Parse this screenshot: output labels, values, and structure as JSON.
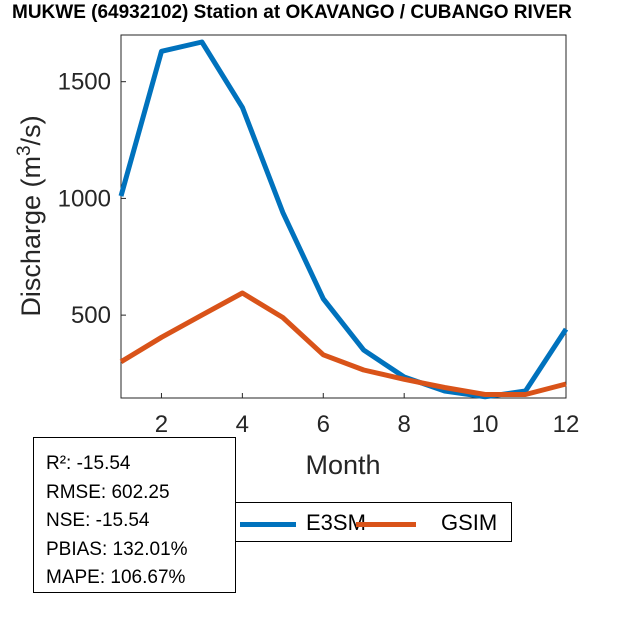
{
  "title": "MUKWE (64932102)  Station at  OKAVANGO / CUBANGO  RIVER",
  "chart_data": {
    "type": "line",
    "xlabel": "Month",
    "ylabel": "Discharge (m³/s)",
    "ylabel_base": "Discharge (m",
    "ylabel_sup": "3",
    "ylabel_tail": "/s)",
    "x": [
      1,
      2,
      3,
      4,
      5,
      6,
      7,
      8,
      9,
      10,
      11,
      12
    ],
    "xlim": [
      1,
      12
    ],
    "ylim": [
      145,
      1700
    ],
    "xticks": [
      2,
      4,
      6,
      8,
      10,
      12
    ],
    "yticks": [
      500,
      1000,
      1500
    ],
    "grid": false,
    "series": [
      {
        "name": "E3SM",
        "color": "#0072BD",
        "values": [
          1010,
          1630,
          1670,
          1390,
          940,
          570,
          350,
          235,
          175,
          150,
          175,
          440
        ]
      },
      {
        "name": "GSIM",
        "color": "#D95319",
        "values": [
          300,
          405,
          500,
          595,
          490,
          330,
          265,
          225,
          190,
          160,
          160,
          205
        ]
      }
    ]
  },
  "stats": {
    "r2": "R²: -15.54",
    "rmse": "RMSE: 602.25",
    "nse": "NSE: -15.54",
    "pbias": "PBIAS: 132.01%",
    "mape": "MAPE: 106.67%"
  },
  "legend": {
    "placement": "bottom",
    "items": [
      {
        "label": "E3SM",
        "color": "#0072BD"
      },
      {
        "label": "GSIM",
        "color": "#D95319"
      }
    ]
  }
}
